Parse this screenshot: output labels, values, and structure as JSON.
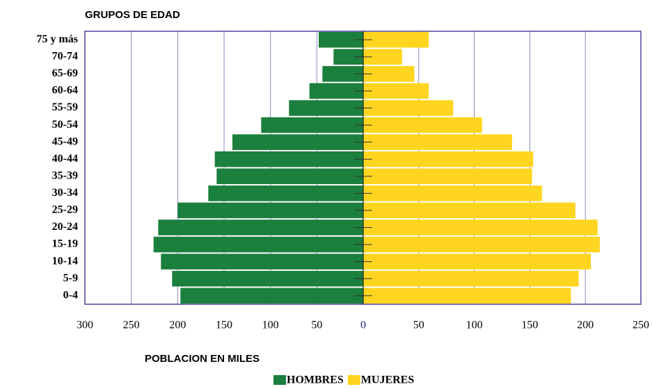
{
  "chart_data": {
    "type": "population-pyramid",
    "title": "GRUPOS DE EDAD",
    "x_label": "POBLACION EN MILES",
    "categories": [
      "0-4",
      "5-9",
      "10-14",
      "15-19",
      "20-24",
      "25-29",
      "30-34",
      "35-39",
      "40-44",
      "45-49",
      "50-54",
      "55-59",
      "60-64",
      "65-69",
      "70-74",
      "75 y más"
    ],
    "series": [
      {
        "name": "HOMBRES",
        "color": "#1b7f3e",
        "values": [
          197,
          206,
          218,
          226,
          221,
          200,
          167,
          158,
          160,
          141,
          110,
          80,
          58,
          44,
          32,
          48
        ]
      },
      {
        "name": "MUJERES",
        "color": "#ffd520",
        "axis": "x2",
        "values": [
          187,
          194,
          205,
          213,
          211,
          191,
          161,
          152,
          153,
          134,
          107,
          81,
          59,
          46,
          35,
          59
        ]
      }
    ],
    "xlim": [
      0,
      300
    ],
    "xticks": [
      0,
      50,
      100,
      150,
      200,
      250,
      300
    ],
    "x2lim": [
      0,
      250
    ],
    "x2ticks": [
      50,
      100,
      150,
      200,
      250
    ],
    "grid": true,
    "legend": "bottom"
  }
}
